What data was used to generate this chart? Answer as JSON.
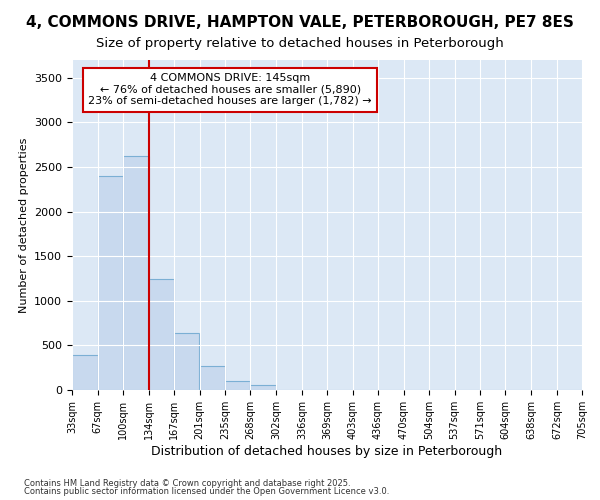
{
  "title": "4, COMMONS DRIVE, HAMPTON VALE, PETERBOROUGH, PE7 8ES",
  "subtitle": "Size of property relative to detached houses in Peterborough",
  "xlabel": "Distribution of detached houses by size in Peterborough",
  "ylabel": "Number of detached properties",
  "footnote1": "Contains HM Land Registry data © Crown copyright and database right 2025.",
  "footnote2": "Contains public sector information licensed under the Open Government Licence v3.0.",
  "annotation_line1": "4 COMMONS DRIVE: 145sqm",
  "annotation_line2": "← 76% of detached houses are smaller (5,890)",
  "annotation_line3": "23% of semi-detached houses are larger (1,782) →",
  "bar_color": "#c8d9ee",
  "bar_edge_color": "#7bafd4",
  "vline_x_index": 3,
  "vline_color": "#cc0000",
  "figure_bg": "#ffffff",
  "axes_bg": "#dce8f5",
  "grid_color": "#ffffff",
  "bin_edges": [
    33,
    67,
    100,
    134,
    167,
    201,
    235,
    268,
    302,
    336,
    369,
    403,
    436,
    470,
    504,
    537,
    571,
    604,
    638,
    672,
    705
  ],
  "bin_labels": [
    "33sqm",
    "67sqm",
    "100sqm",
    "134sqm",
    "167sqm",
    "201sqm",
    "235sqm",
    "268sqm",
    "302sqm",
    "336sqm",
    "369sqm",
    "403sqm",
    "436sqm",
    "470sqm",
    "504sqm",
    "537sqm",
    "571sqm",
    "604sqm",
    "638sqm",
    "672sqm",
    "705sqm"
  ],
  "values": [
    390,
    2400,
    2620,
    1240,
    640,
    270,
    100,
    55,
    0,
    0,
    0,
    0,
    0,
    0,
    0,
    0,
    0,
    0,
    0,
    0
  ],
  "ylim": [
    0,
    3700
  ],
  "yticks": [
    0,
    500,
    1000,
    1500,
    2000,
    2500,
    3000,
    3500
  ],
  "title_fontsize": 11,
  "subtitle_fontsize": 9.5
}
